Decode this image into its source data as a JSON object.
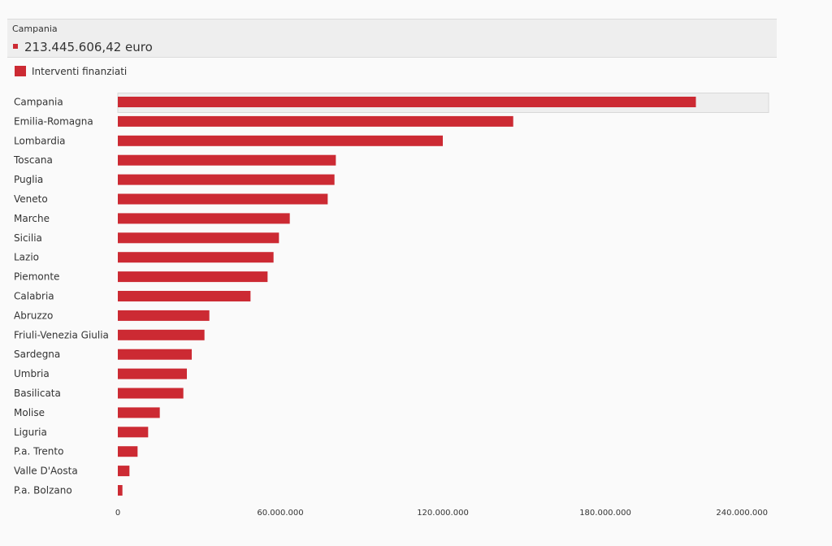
{
  "tooltip": {
    "title": "Campania",
    "value": "213.445.606,42 euro"
  },
  "colors": {
    "bar": "#cc2a33",
    "highlight_bg": "#eeeeee",
    "highlight_border": "#d8d8d8"
  },
  "chart_data": {
    "type": "bar",
    "orientation": "horizontal",
    "legend": {
      "position": "top-left",
      "entries": [
        "Interventi finanziati"
      ]
    },
    "series": [
      {
        "name": "Interventi finanziati",
        "values": [
          213445606.42,
          146000000,
          120000000,
          80500000,
          80000000,
          77500000,
          63500000,
          59500000,
          57500000,
          55300000,
          49000000,
          33800000,
          32000000,
          27300000,
          25500000,
          24200000,
          15500000,
          11200000,
          7300000,
          4300000,
          1700000
        ]
      }
    ],
    "categories": [
      "Campania",
      "Emilia-Romagna",
      "Lombardia",
      "Toscana",
      "Puglia",
      "Veneto",
      "Marche",
      "Sicilia",
      "Lazio",
      "Piemonte",
      "Calabria",
      "Abruzzo",
      "Friuli-Venezia Giulia",
      "Sardegna",
      "Umbria",
      "Basilicata",
      "Molise",
      "Liguria",
      "P.a. Trento",
      "Valle D'Aosta",
      "P.a. Bolzano"
    ],
    "highlighted_category": "Campania",
    "xlim": [
      0,
      240000000
    ],
    "xticks": [
      0,
      60000000,
      120000000,
      180000000,
      240000000
    ],
    "xtick_labels": [
      "0",
      "60.000.000",
      "120.000.000",
      "180.000.000",
      "240.000.000"
    ],
    "grid": false,
    "title": "",
    "xlabel": "",
    "ylabel": ""
  }
}
